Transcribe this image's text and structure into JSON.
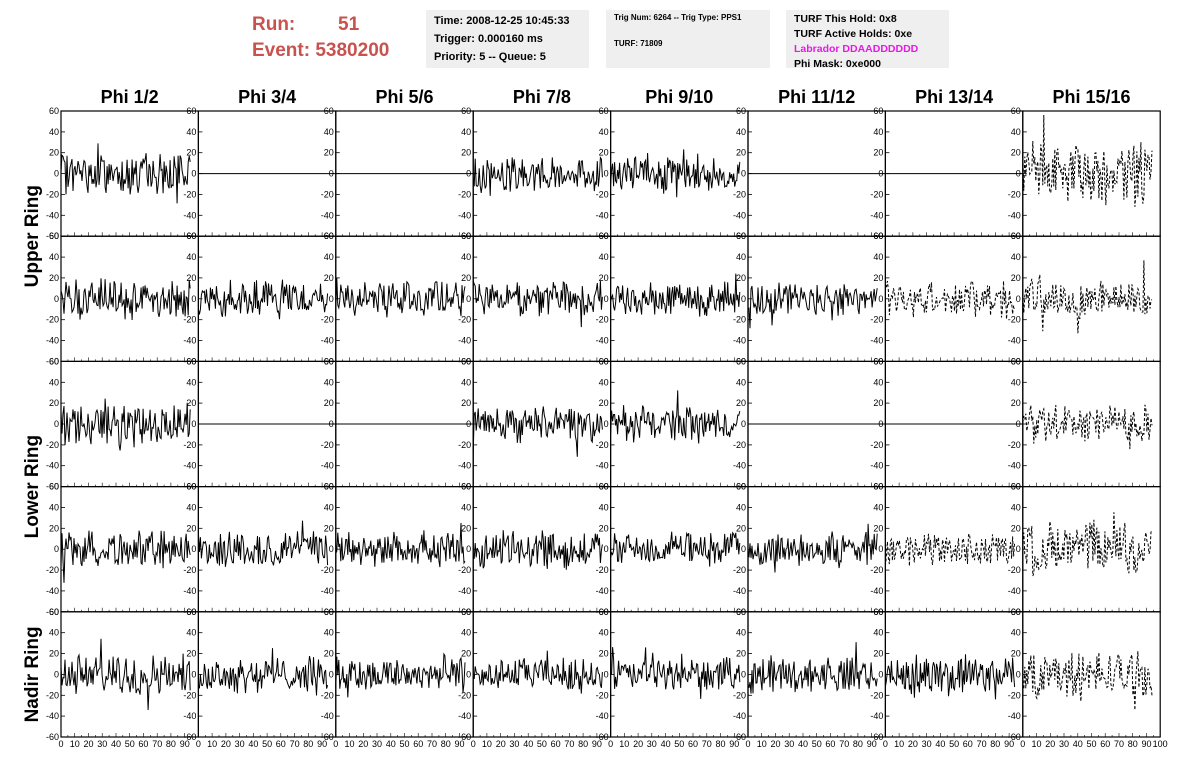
{
  "header": {
    "run_label": "Run:",
    "run_value": "51",
    "event_label": "Event:",
    "event_value": "5380200",
    "time_line": "Time: 2008-12-25 10:45:33",
    "trigger_line": "Trigger: 0.000160 ms",
    "priority_line": "Priority: 5 -- Queue: 5",
    "trig_num_line": "Trig Num: 6264 -- Trig Type: PPS1",
    "turf_line": "TURF: 71809",
    "turf_hold_line": "TURF This Hold: 0x8",
    "turf_active_line": "TURF Active Holds: 0xe",
    "labrador_line": "Labrador DDAADDDDDD",
    "phi_mask_line": "Phi Mask: 0xe000",
    "labrador_color": "#e619e6"
  },
  "chart_data": {
    "type": "line",
    "columns": [
      "Phi 1/2",
      "Phi 3/4",
      "Phi 5/6",
      "Phi 7/8",
      "Phi 9/10",
      "Phi 11/12",
      "Phi 13/14",
      "Phi 15/16"
    ],
    "row_labels": [
      "Upper Ring",
      "Lower Ring",
      "Nadir Ring"
    ],
    "xlim": [
      0,
      100
    ],
    "ylim": [
      -60,
      60
    ],
    "y_ticks": [
      -60,
      -40,
      -20,
      0,
      20,
      40,
      60
    ],
    "x_ticks": [
      0,
      10,
      20,
      30,
      40,
      50,
      60,
      70,
      80,
      90,
      100
    ],
    "grid": false,
    "rows": [
      {
        "amplitude": [
          16,
          0,
          0,
          14,
          15,
          0,
          0,
          24
        ],
        "style": [
          "solid",
          "flat",
          "flat",
          "solid",
          "solid",
          "flat",
          "flat",
          "dashed"
        ]
      },
      {
        "amplitude": [
          16,
          14,
          15,
          14,
          13,
          13,
          15,
          16
        ],
        "style": [
          "solid",
          "solid",
          "solid",
          "solid",
          "solid",
          "solid",
          "dashed",
          "dashed"
        ]
      },
      {
        "amplitude": [
          16,
          0,
          0,
          14,
          14,
          0,
          0,
          15
        ],
        "style": [
          "solid",
          "flat",
          "flat",
          "solid",
          "solid",
          "flat",
          "flat",
          "dashed"
        ]
      },
      {
        "amplitude": [
          15,
          15,
          14,
          15,
          13,
          13,
          14,
          22
        ],
        "style": [
          "solid",
          "solid",
          "solid",
          "solid",
          "solid",
          "solid",
          "dashed",
          "dashed"
        ]
      },
      {
        "amplitude": [
          16,
          14,
          14,
          13,
          13,
          14,
          15,
          19
        ],
        "style": [
          "solid",
          "solid",
          "solid",
          "solid",
          "solid",
          "solid",
          "solid",
          "dashed"
        ]
      }
    ]
  }
}
